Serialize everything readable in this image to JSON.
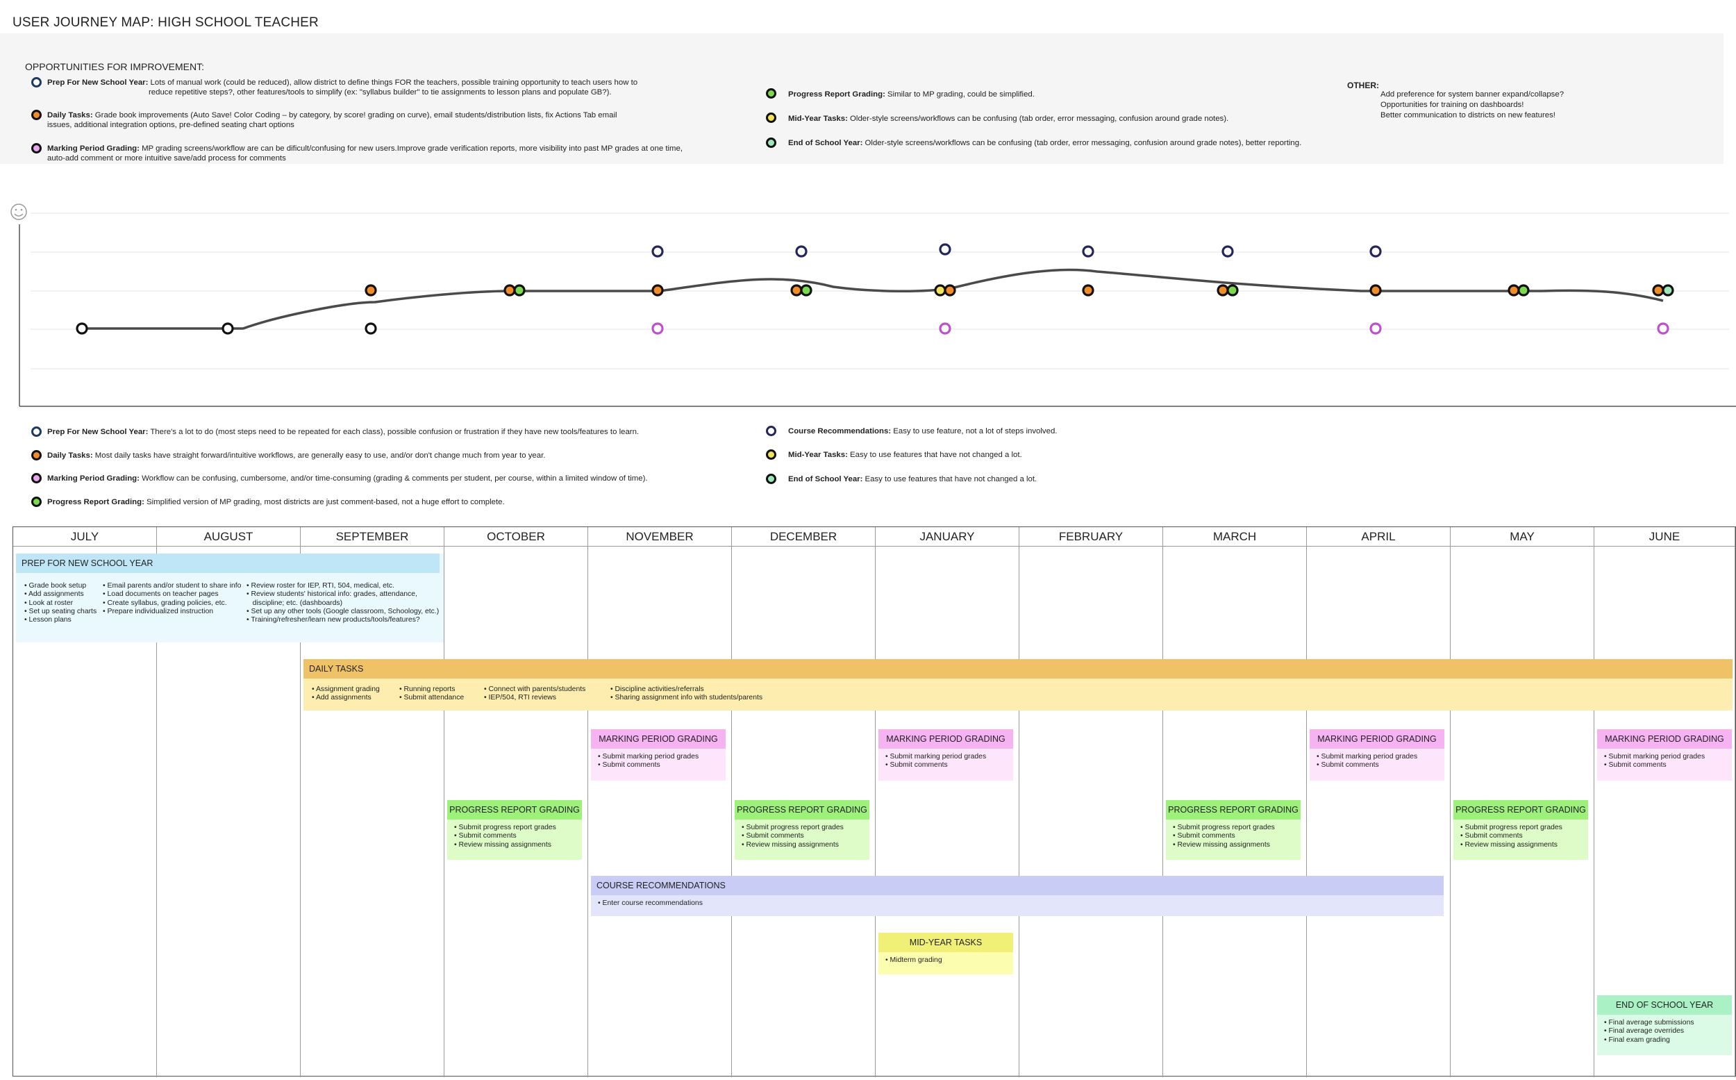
{
  "title": "USER JOURNEY MAP: HIGH SCHOOL TEACHER",
  "opportunities": {
    "heading": "OPPORTUNITIES FOR IMPROVEMENT:",
    "left": [
      {
        "label": "Prep For New School Year:",
        "text": " Lots of manual work (could be reduced), allow district to define things FOR the teachers, possible training opportunity to teach users how to",
        "text2": "reduce repetitive steps?, other features/tools to simplify (ex: \"syllabus builder\" to tie assignments to lesson plans and populate GB?).",
        "color": "#1e3a5f"
      },
      {
        "label": "Daily Tasks:",
        "text": " Grade book improvements (Auto Save! Color Coding – by category, by score! grading on curve), email students/distribution lists, fix Actions Tab email",
        "text2": "issues, additional integration options, pre-defined seating chart options",
        "color": "#f28c28"
      },
      {
        "label": "Marking Period Grading:",
        "text": " MP grading screens/workflow are can be dificult/confusing for new users.Improve grade verification reports, more visibility into past MP grades at one time,",
        "text2": "auto-add comment or more intuitive save/add process for comments",
        "color": "#c04fd0"
      }
    ],
    "middle": [
      {
        "label": "Progress Report Grading:",
        "text": " Similar to MP grading, could be simplified.",
        "color": "#3fbf3f"
      },
      {
        "label": "Mid-Year Tasks:",
        "text": " Older-style screens/workflows can be confusing (tab order, error messaging, confusion around grade notes).",
        "color": "#f2d43a"
      },
      {
        "label": "End of School Year:",
        "text": " Older-style screens/workflows can be confusing (tab order, error messaging, confusion around grade notes), better reporting.",
        "color": "#2ea86b"
      }
    ],
    "other_heading": "OTHER:",
    "other": [
      "Add preference for system banner expand/collapse?",
      "Opportunities for training on dashboards!",
      "Better communication to districts on new features!"
    ]
  },
  "legend": {
    "left": [
      {
        "label": "Prep For New School Year:",
        "text": " There's a lot to do (most steps need to be repeated for each class), possible confusion or frustration if they have new tools/features to learn.",
        "color": "#1e3a5f"
      },
      {
        "label": "Daily Tasks:",
        "text": " Most daily tasks have straight forward/intuitive workflows, are generally easy to use, and/or don't change much from year to year.",
        "color": "#f28c28"
      },
      {
        "label": "Marking Period Grading:",
        "text": " Workflow can be confusing, cumbersome, and/or time-consuming (grading & comments per student, per course, within a limited window of time).",
        "color": "#c04fd0"
      },
      {
        "label": "Progress Report Grading:",
        "text": " Simplified version of MP grading, most districts are just comment-based, not a huge effort to complete.",
        "color": "#3fbf3f"
      }
    ],
    "right": [
      {
        "label": "Course Recommendations:",
        "text": " Easy to use feature, not a lot of steps involved.",
        "color": "#7b7fd9"
      },
      {
        "label": "Mid-Year Tasks:",
        "text": " Easy to use features that have not changed a lot.",
        "color": "#f2d43a"
      },
      {
        "label": "End of School Year:",
        "text": " Easy to use features that have not changed a lot.",
        "color": "#2ea86b"
      }
    ]
  },
  "emotion_icon": "smiley-icon",
  "months": [
    "JULY",
    "AUGUST",
    "SEPTEMBER",
    "OCTOBER",
    "NOVEMBER",
    "DECEMBER",
    "JANUARY",
    "FEBRUARY",
    "MARCH",
    "APRIL",
    "MAY",
    "JUNE"
  ],
  "prep": {
    "title": "PREP FOR NEW SCHOOL YEAR",
    "col1": [
      "• Grade book setup",
      "• Add assignments",
      "• Look at roster",
      "• Set up seating charts",
      "• Lesson plans"
    ],
    "col2": [
      "• Email parents and/or student to share info",
      "• Load documents on teacher pages",
      "• Create syllabus, grading policies, etc.",
      "• Prepare individualized instruction"
    ],
    "col3": [
      "• Review roster for IEP, RTI, 504, medical, etc.",
      "• Review students' historical info: grades, attendance,",
      "   discipline; etc. (dashboards)",
      "• Set up any other tools (Google classroom, Schoology, etc.)",
      "• Training/refresher/learn new products/tools/features?"
    ]
  },
  "daily": {
    "title": "DAILY TASKS",
    "col1": [
      "• Assignment grading",
      "• Add assignments"
    ],
    "col2": [
      "• Running reports",
      "• Submit attendance"
    ],
    "col3": [
      "• Connect with parents/students",
      "• IEP/504, RTI reviews"
    ],
    "col4": [
      "• Discipline activities/referrals",
      "• Sharing assignment info with students/parents"
    ]
  },
  "mp": {
    "title": "MARKING PERIOD GRADING",
    "items": [
      "• Submit marking period grades",
      "• Submit comments"
    ]
  },
  "pr": {
    "title": "PROGRESS REPORT GRADING",
    "items": [
      "• Submit progress report grades",
      "• Submit comments",
      "• Review missing assignments"
    ]
  },
  "course": {
    "title": "COURSE RECOMMENDATIONS",
    "items": [
      "• Enter course recommendations"
    ]
  },
  "midyear": {
    "title": "MID-YEAR TASKS",
    "items": [
      "• Midterm grading"
    ]
  },
  "eoy": {
    "title": "END OF SCHOOL YEAR",
    "items": [
      "• Final average submissions",
      "• Final average overrides",
      "• Final exam grading"
    ]
  }
}
